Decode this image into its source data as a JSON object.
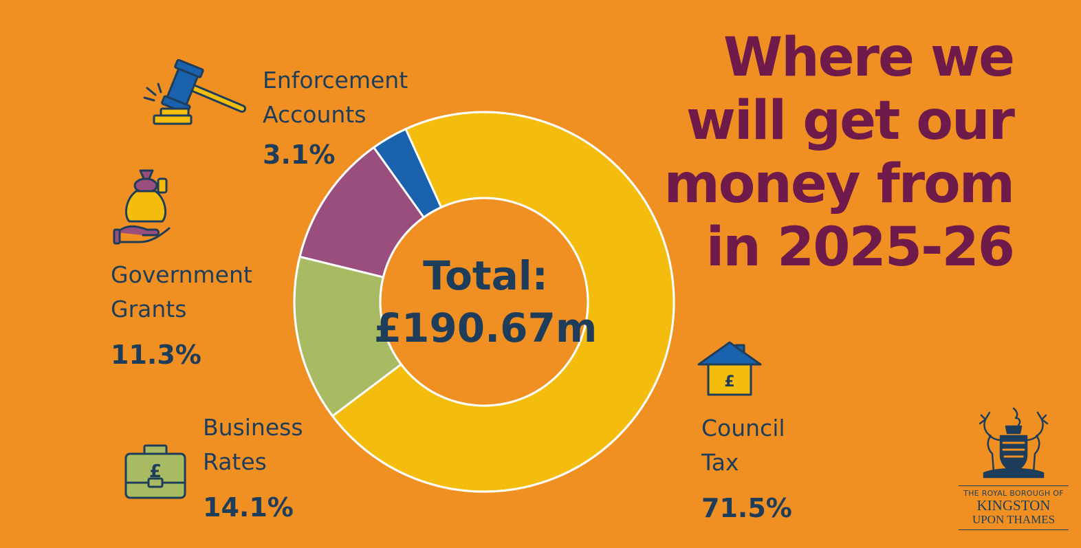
{
  "header": {
    "title_lines": [
      "Where we",
      "will get our",
      "money from",
      "in 2025-26"
    ]
  },
  "center": {
    "line1": "Total:",
    "line2": "£190.67m"
  },
  "chart_data": {
    "type": "pie",
    "title": "Where we will get our money from in 2025-26",
    "total_label": "Total: £190.67m",
    "categories": [
      "Council Tax",
      "Business Rates",
      "Government Grants",
      "Enforcement Accounts"
    ],
    "values": [
      71.5,
      14.1,
      11.3,
      3.1
    ],
    "unit": "%",
    "colors": [
      "#F4BC0C",
      "#A9BB62",
      "#9A4E7E",
      "#1A62AE"
    ],
    "labels": [
      {
        "name_lines": [
          "Council",
          "Tax"
        ],
        "pct": "71.5%",
        "icon": "house-pound-icon"
      },
      {
        "name_lines": [
          "Business",
          "Rates"
        ],
        "pct": "14.1%",
        "icon": "briefcase-pound-icon"
      },
      {
        "name_lines": [
          "Government",
          "Grants"
        ],
        "pct": "11.3%",
        "icon": "money-bag-hand-icon"
      },
      {
        "name_lines": [
          "Enforcement",
          "Accounts"
        ],
        "pct": "3.1%",
        "icon": "gavel-icon"
      }
    ]
  },
  "logo": {
    "line1": "THE ROYAL BOROUGH OF",
    "line2": "KINGSTON",
    "line3": "UPON THAMES"
  },
  "colors": {
    "background": "#F09022",
    "title": "#6E1A4B",
    "text": "#1E3D5A"
  }
}
